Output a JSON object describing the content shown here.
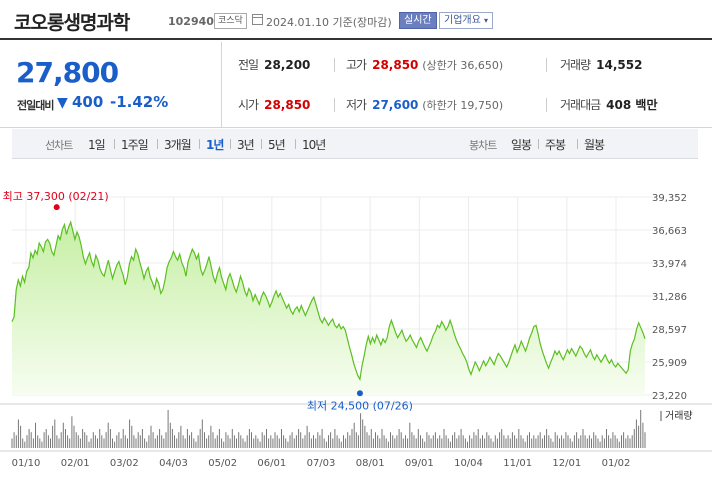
{
  "header": {
    "name": "코오롱생명과학",
    "code": "102940",
    "market": "코스닥",
    "date_text": "2024.01.10  기준(장마감)",
    "realtime_label": "실시간",
    "company_label": "기업개요",
    "company_caret": "▾"
  },
  "quote": {
    "price": "27,800",
    "change_label": "전일대비",
    "change_icon": "▼",
    "change_amount": "400",
    "change_pct": "-1.42%",
    "prev_close_label": "전일",
    "prev_close": "28,200",
    "high_label": "고가",
    "high": "28,850",
    "upper_limit": "(상한가 36,650)",
    "volume_label": "거래량",
    "volume": "14,552",
    "open_label": "시가",
    "open": "28,850",
    "low_label": "저가",
    "low": "27,600",
    "lower_limit": "(하한가 19,750)",
    "amount_label": "거래대금",
    "amount": "408 백만"
  },
  "period_bar": {
    "line_label": "선차트",
    "line_items": [
      "1일",
      "1주일",
      "3개월",
      "1년",
      "3년",
      "5년",
      "10년"
    ],
    "active": "1년",
    "candle_label": "봉차트",
    "candle_items": [
      "일봉",
      "주봉",
      "월봉"
    ]
  },
  "chart_data": {
    "type": "area",
    "y_ticks": [
      "39,352",
      "36,663",
      "33,974",
      "31,286",
      "28,597",
      "25,909",
      "23,220"
    ],
    "ylim": [
      23220,
      39352
    ],
    "x_ticks": [
      "01/10",
      "02/01",
      "03/02",
      "04/03",
      "05/02",
      "06/01",
      "07/03",
      "08/01",
      "09/01",
      "10/04",
      "11/01",
      "12/01",
      "01/02"
    ],
    "high_annotation": "최고 37,300 (02/21)",
    "low_annotation": "최저 24,500 (07/26)",
    "volume_label": "거래량",
    "line_color": "#5bbf21",
    "fill_top": "#c6efa4",
    "high_color": "#e0001b",
    "low_color": "#1a5fc9",
    "prices": [
      29200,
      29600,
      31800,
      32600,
      32100,
      32900,
      32400,
      33300,
      33600,
      34800,
      34400,
      35000,
      34700,
      35600,
      35300,
      34900,
      35700,
      35900,
      35600,
      34900,
      34600,
      35400,
      36200,
      35900,
      36700,
      37100,
      36300,
      36900,
      37300,
      36600,
      35900,
      36500,
      36100,
      35400,
      34500,
      33900,
      34400,
      34800,
      34100,
      33700,
      34600,
      34200,
      33500,
      33100,
      32900,
      33600,
      34200,
      33400,
      32700,
      33300,
      33800,
      34100,
      33500,
      33000,
      32200,
      32800,
      33900,
      34500,
      34200,
      35100,
      34700,
      34000,
      33400,
      32700,
      33300,
      33600,
      32800,
      32400,
      31900,
      32700,
      32300,
      31500,
      31800,
      32600,
      33600,
      34100,
      34400,
      34900,
      34500,
      34200,
      34700,
      34000,
      33600,
      32900,
      34100,
      34600,
      35100,
      34800,
      34300,
      34700,
      33500,
      33000,
      33400,
      33900,
      34500,
      33700,
      32900,
      32400,
      33100,
      33600,
      32800,
      32300,
      31800,
      32700,
      33100,
      32600,
      32000,
      31600,
      32200,
      32900,
      32400,
      31700,
      31300,
      31900,
      31600,
      30900,
      31400,
      31000,
      30600,
      31200,
      31600,
      31300,
      30900,
      30400,
      30800,
      31300,
      31700,
      31200,
      31500,
      31100,
      30700,
      30300,
      30600,
      30100,
      29800,
      30200,
      30400,
      30000,
      30500,
      30100,
      29700,
      30100,
      30500,
      30900,
      31200,
      30600,
      30000,
      29400,
      29100,
      29500,
      29200,
      28900,
      29200,
      29400,
      28900,
      28700,
      29000,
      28600,
      28800,
      28500,
      27800,
      27100,
      26500,
      25800,
      25300,
      24800,
      24500,
      25600,
      26400,
      27300,
      28000,
      27400,
      27900,
      27500,
      28100,
      27700,
      27300,
      27800,
      27500,
      27900,
      28800,
      29300,
      28800,
      28300,
      27900,
      28200,
      28500,
      28000,
      27600,
      27800,
      28100,
      27700,
      27400,
      27100,
      27600,
      27900,
      27500,
      27100,
      26800,
      27200,
      27600,
      28100,
      28400,
      28900,
      28700,
      29200,
      28900,
      28500,
      28800,
      29300,
      28800,
      28200,
      27700,
      27300,
      27000,
      26600,
      26300,
      25900,
      25300,
      24900,
      25400,
      25900,
      25600,
      25200,
      25600,
      26000,
      25600,
      25900,
      26300,
      26000,
      25700,
      26200,
      26600,
      26400,
      26100,
      25800,
      25500,
      25900,
      26400,
      26900,
      27300,
      26700,
      27100,
      27600,
      27200,
      26800,
      27300,
      27900,
      28300,
      28800,
      28900,
      28200,
      27400,
      26800,
      26300,
      25800,
      25400,
      25900,
      26300,
      26800,
      26500,
      26800,
      26400,
      26100,
      26500,
      26900,
      26600,
      27000,
      26700,
      26400,
      26800,
      27200,
      27000,
      26600,
      26300,
      26600,
      26900,
      26400,
      26100,
      26500,
      26200,
      25900,
      26200,
      26500,
      26100,
      25800,
      26100,
      25700,
      25500,
      25800,
      25600,
      25400,
      25200,
      25000,
      25300,
      26800,
      27400,
      27800,
      28600,
      29100,
      28700,
      28300,
      27800
    ],
    "volumes": [
      3,
      5,
      4,
      9,
      7,
      3,
      2,
      4,
      6,
      5,
      3,
      8,
      4,
      3,
      2,
      5,
      6,
      4,
      3,
      7,
      9,
      4,
      3,
      5,
      8,
      6,
      4,
      3,
      10,
      7,
      5,
      4,
      3,
      6,
      5,
      4,
      2,
      3,
      5,
      4,
      3,
      6,
      4,
      3,
      5,
      8,
      6,
      3,
      2,
      4,
      5,
      3,
      6,
      4,
      3,
      9,
      7,
      4,
      3,
      5,
      4,
      6,
      3,
      2,
      4,
      7,
      5,
      3,
      4,
      6,
      4,
      3,
      5,
      12,
      8,
      6,
      4,
      3,
      5,
      7,
      4,
      3,
      6,
      4,
      5,
      3,
      2,
      4,
      6,
      9,
      5,
      3,
      4,
      7,
      5,
      3,
      4,
      6,
      3,
      2,
      5,
      4,
      3,
      6,
      4,
      3,
      5,
      4,
      3,
      2,
      4,
      6,
      5,
      3,
      4,
      3,
      2,
      5,
      4,
      6,
      3,
      4,
      3,
      5,
      4,
      3,
      6,
      4,
      3,
      2,
      4,
      5,
      3,
      4,
      6,
      5,
      3,
      4,
      7,
      5,
      3,
      4,
      3,
      5,
      4,
      6,
      3,
      2,
      4,
      5,
      3,
      6,
      4,
      3,
      2,
      4,
      3,
      5,
      4,
      6,
      8,
      5,
      4,
      11,
      9,
      7,
      5,
      4,
      6,
      3,
      5,
      4,
      3,
      6,
      4,
      3,
      2,
      5,
      4,
      3,
      4,
      6,
      5,
      3,
      4,
      3,
      8,
      5,
      4,
      3,
      6,
      4,
      3,
      2,
      5,
      4,
      3,
      4,
      5,
      3,
      4,
      3,
      6,
      4,
      3,
      2,
      4,
      5,
      3,
      4,
      6,
      4,
      3,
      2,
      4,
      3,
      5,
      4,
      6,
      3,
      4,
      3,
      5,
      4,
      3,
      2,
      4,
      3,
      5,
      6,
      4,
      3,
      4,
      3,
      5,
      4,
      3,
      6,
      4,
      3,
      2,
      4,
      5,
      3,
      4,
      3,
      4,
      5,
      3,
      4,
      6,
      4,
      3,
      2,
      5,
      4,
      3,
      4,
      3,
      5,
      4,
      3,
      2,
      4,
      5,
      3,
      4,
      6,
      4,
      3,
      4,
      3,
      5,
      4,
      3,
      2,
      4,
      3,
      6,
      4,
      3,
      5,
      4,
      3,
      2,
      4,
      5,
      3,
      4,
      3,
      4,
      6,
      9,
      7,
      12,
      8,
      5
    ]
  }
}
